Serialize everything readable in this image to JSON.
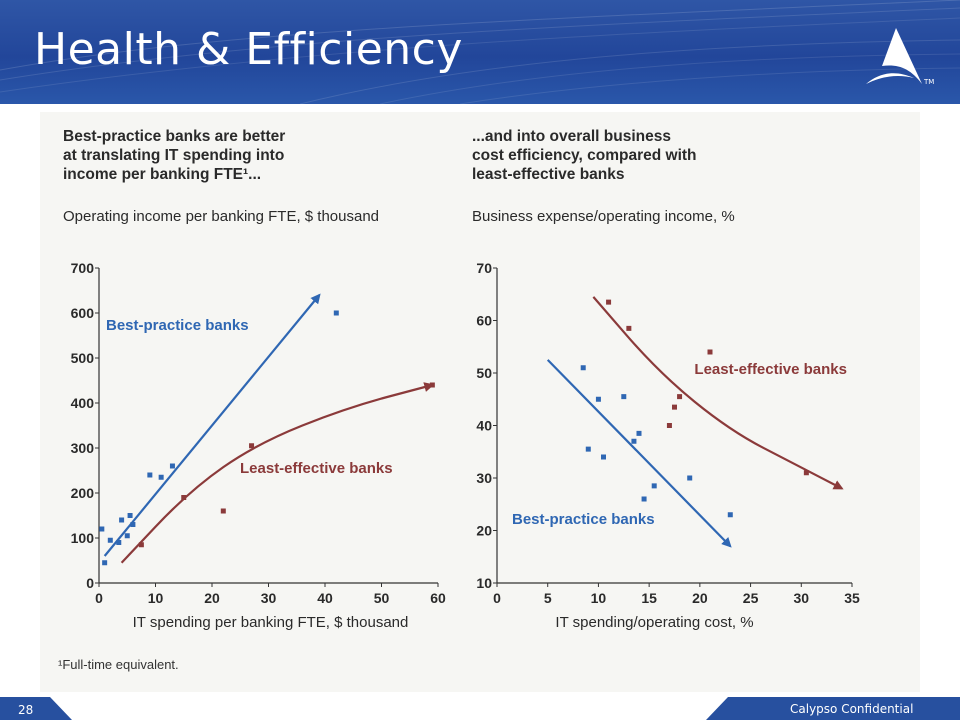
{
  "slide": {
    "title": "Health & Efficiency",
    "page_number": "28",
    "footer_text": "Calypso Confidential",
    "footnote": "¹Full-time equivalent.",
    "trademark": "TM",
    "colors": {
      "header_blue": "#27509f",
      "best_blue": "#2f67b3",
      "least_red": "#8b3a3a"
    }
  },
  "chart_data": [
    {
      "type": "scatter",
      "title": "Best-practice banks are better\nat translating IT spending into\nincome per banking FTE¹...",
      "ylabel": "Operating income per banking FTE, $ thousand",
      "xlabel": "IT spending per banking FTE, $ thousand",
      "xlim": [
        0,
        60
      ],
      "ylim": [
        0,
        700
      ],
      "xticks": [
        "0",
        "10",
        "20",
        "30",
        "40",
        "50",
        "60"
      ],
      "yticks": [
        "0",
        "100",
        "200",
        "300",
        "400",
        "500",
        "600",
        "700"
      ],
      "series": [
        {
          "name": "Best-practice banks",
          "color": "#2f67b3",
          "points": [
            [
              0.5,
              120
            ],
            [
              1,
              45
            ],
            [
              2,
              95
            ],
            [
              3.5,
              90
            ],
            [
              4,
              140
            ],
            [
              5,
              105
            ],
            [
              5.5,
              150
            ],
            [
              6,
              130
            ],
            [
              9,
              240
            ],
            [
              11,
              235
            ],
            [
              13,
              260
            ],
            [
              42,
              600
            ]
          ],
          "trend": [
            [
              1,
              60
            ],
            [
              39,
              640
            ]
          ]
        },
        {
          "name": "Least-effective banks",
          "color": "#8b3a3a",
          "points": [
            [
              7.5,
              85
            ],
            [
              15,
              190
            ],
            [
              22,
              160
            ],
            [
              27,
              305
            ],
            [
              59,
              440
            ]
          ],
          "trend": [
            [
              4,
              45
            ],
            [
              16,
              205
            ],
            [
              28,
              310
            ],
            [
              44,
              390
            ],
            [
              59,
              440
            ]
          ]
        }
      ]
    },
    {
      "type": "scatter",
      "title": "...and into overall business\ncost efficiency, compared with\nleast-effective banks",
      "ylabel": "Business expense/operating income, %",
      "xlabel": "IT spending/operating cost, %",
      "xlim": [
        0,
        35
      ],
      "ylim": [
        10,
        70
      ],
      "xticks": [
        "0",
        "5",
        "10",
        "15",
        "20",
        "25",
        "30",
        "35"
      ],
      "yticks": [
        "10",
        "20",
        "30",
        "40",
        "50",
        "60",
        "70"
      ],
      "series": [
        {
          "name": "Best-practice banks",
          "color": "#2f67b3",
          "points": [
            [
              8.5,
              51
            ],
            [
              9,
              35.5
            ],
            [
              10,
              45
            ],
            [
              10.5,
              34
            ],
            [
              12.5,
              45.5
            ],
            [
              13.5,
              37
            ],
            [
              14,
              38.5
            ],
            [
              14.5,
              26
            ],
            [
              15.5,
              28.5
            ],
            [
              19,
              30
            ],
            [
              23,
              23
            ]
          ],
          "trend": [
            [
              5,
              52.5
            ],
            [
              23,
              17
            ]
          ]
        },
        {
          "name": "Least-effective banks",
          "color": "#8b3a3a",
          "points": [
            [
              11,
              63.5
            ],
            [
              13,
              58.5
            ],
            [
              17,
              40
            ],
            [
              17.5,
              43.5
            ],
            [
              18,
              45.5
            ],
            [
              21,
              54
            ],
            [
              30.5,
              31
            ]
          ],
          "trend": [
            [
              9.5,
              64.5
            ],
            [
              16,
              50
            ],
            [
              23,
              39
            ],
            [
              29.5,
              32.5
            ],
            [
              34,
              28
            ]
          ]
        }
      ]
    }
  ]
}
